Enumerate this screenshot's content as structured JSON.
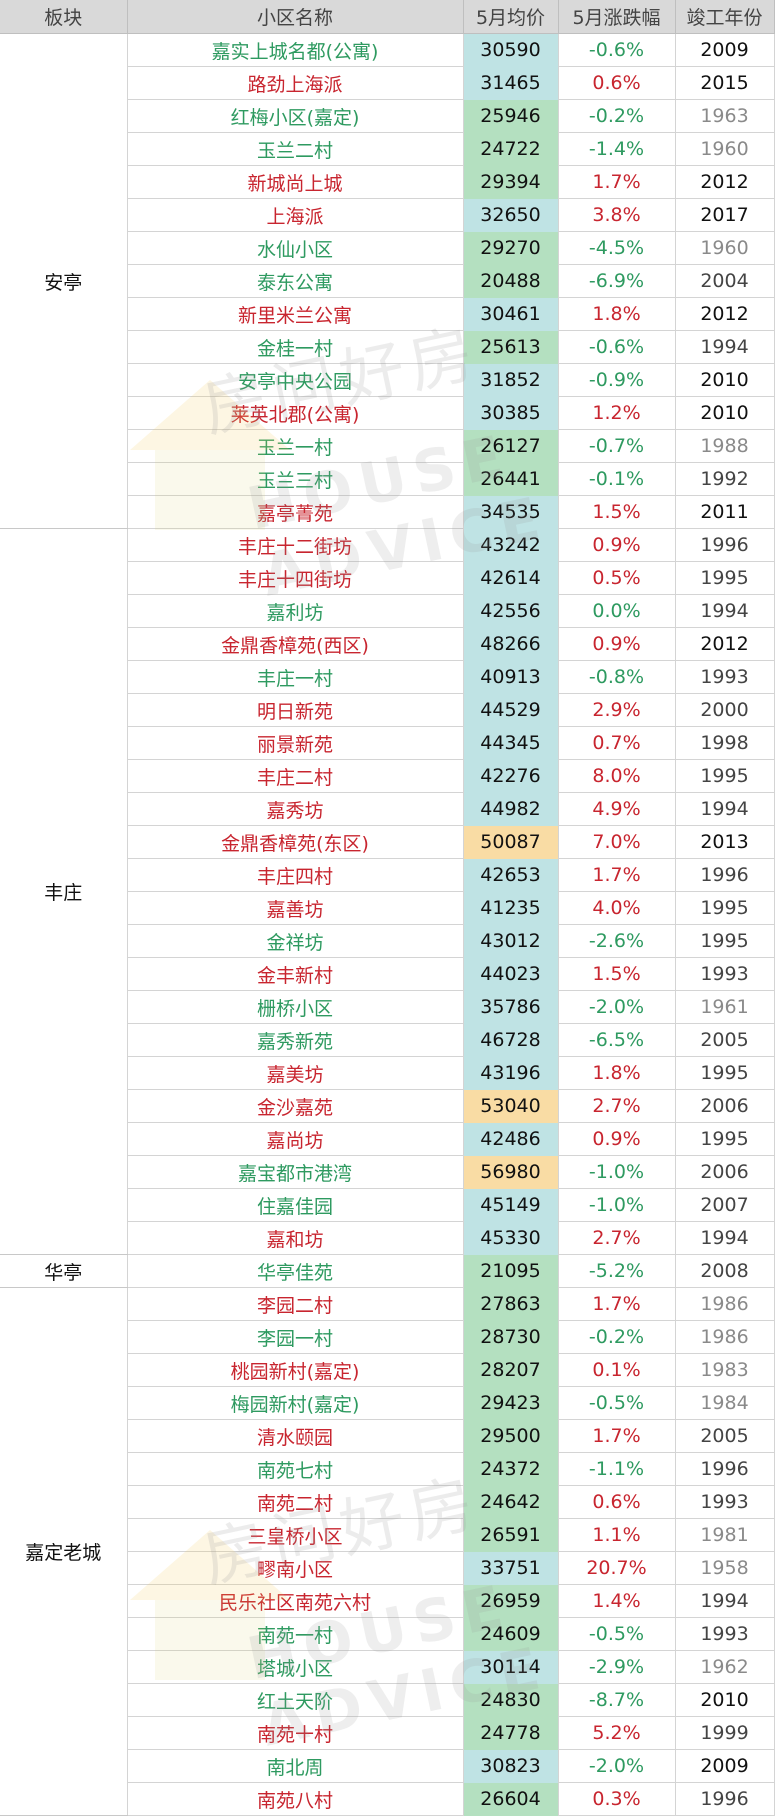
{
  "headers": [
    "板块",
    "小区名称",
    "5月均价",
    "5月涨跌幅",
    "竣工年份"
  ],
  "watermark": {
    "cn": "房问好房",
    "en": "HOUSE ADVICE"
  },
  "colors": {
    "up": "#c8252f",
    "down": "#2e9a60",
    "price_high": "#f9dca4",
    "price_mid": "#bfe3e4",
    "price_low": "#b4e0c0",
    "header_bg": "#d9d9d9"
  },
  "groups": [
    {
      "district": "安亭",
      "rows": [
        {
          "name": "嘉实上城名都(公寓)",
          "price": "30590",
          "change": "-0.6%",
          "year": "2009"
        },
        {
          "name": "路劲上海派",
          "price": "31465",
          "change": "0.6%",
          "year": "2015"
        },
        {
          "name": "红梅小区(嘉定)",
          "price": "25946",
          "change": "-0.2%",
          "year": "1963"
        },
        {
          "name": "玉兰二村",
          "price": "24722",
          "change": "-1.4%",
          "year": "1960"
        },
        {
          "name": "新城尚上城",
          "price": "29394",
          "change": "1.7%",
          "year": "2012"
        },
        {
          "name": "上海派",
          "price": "32650",
          "change": "3.8%",
          "year": "2017"
        },
        {
          "name": "水仙小区",
          "price": "29270",
          "change": "-4.5%",
          "year": "1960"
        },
        {
          "name": "泰东公寓",
          "price": "20488",
          "change": "-6.9%",
          "year": "2004"
        },
        {
          "name": "新里米兰公寓",
          "price": "30461",
          "change": "1.8%",
          "year": "2012"
        },
        {
          "name": "金桂一村",
          "price": "25613",
          "change": "-0.6%",
          "year": "1994"
        },
        {
          "name": "安亭中央公园",
          "price": "31852",
          "change": "-0.9%",
          "year": "2010"
        },
        {
          "name": "莱英北郡(公寓)",
          "price": "30385",
          "change": "1.2%",
          "year": "2010"
        },
        {
          "name": "玉兰一村",
          "price": "26127",
          "change": "-0.7%",
          "year": "1988"
        },
        {
          "name": "玉兰三村",
          "price": "26441",
          "change": "-0.1%",
          "year": "1992"
        },
        {
          "name": "嘉亭菁苑",
          "price": "34535",
          "change": "1.5%",
          "year": "2011"
        }
      ]
    },
    {
      "district": "丰庄",
      "rows": [
        {
          "name": "丰庄十二街坊",
          "price": "43242",
          "change": "0.9%",
          "year": "1996"
        },
        {
          "name": "丰庄十四街坊",
          "price": "42614",
          "change": "0.5%",
          "year": "1995"
        },
        {
          "name": "嘉利坊",
          "price": "42556",
          "change": "0.0%",
          "year": "1994"
        },
        {
          "name": "金鼎香樟苑(西区)",
          "price": "48266",
          "change": "0.9%",
          "year": "2012"
        },
        {
          "name": "丰庄一村",
          "price": "40913",
          "change": "-0.8%",
          "year": "1993"
        },
        {
          "name": "明日新苑",
          "price": "44529",
          "change": "2.9%",
          "year": "2000"
        },
        {
          "name": "丽景新苑",
          "price": "44345",
          "change": "0.7%",
          "year": "1998"
        },
        {
          "name": "丰庄二村",
          "price": "42276",
          "change": "8.0%",
          "year": "1995"
        },
        {
          "name": "嘉秀坊",
          "price": "44982",
          "change": "4.9%",
          "year": "1994"
        },
        {
          "name": "金鼎香樟苑(东区)",
          "price": "50087",
          "change": "7.0%",
          "year": "2013"
        },
        {
          "name": "丰庄四村",
          "price": "42653",
          "change": "1.7%",
          "year": "1996"
        },
        {
          "name": "嘉善坊",
          "price": "41235",
          "change": "4.0%",
          "year": "1995"
        },
        {
          "name": "金祥坊",
          "price": "43012",
          "change": "-2.6%",
          "year": "1995"
        },
        {
          "name": "金丰新村",
          "price": "44023",
          "change": "1.5%",
          "year": "1993"
        },
        {
          "name": "栅桥小区",
          "price": "35786",
          "change": "-2.0%",
          "year": "1961"
        },
        {
          "name": "嘉秀新苑",
          "price": "46728",
          "change": "-6.5%",
          "year": "2005"
        },
        {
          "name": "嘉美坊",
          "price": "43196",
          "change": "1.8%",
          "year": "1995"
        },
        {
          "name": "金沙嘉苑",
          "price": "53040",
          "change": "2.7%",
          "year": "2006"
        },
        {
          "name": "嘉尚坊",
          "price": "42486",
          "change": "0.9%",
          "year": "1995"
        },
        {
          "name": "嘉宝都市港湾",
          "price": "56980",
          "change": "-1.0%",
          "year": "2006"
        },
        {
          "name": "住嘉佳园",
          "price": "45149",
          "change": "-1.0%",
          "year": "2007"
        },
        {
          "name": "嘉和坊",
          "price": "45330",
          "change": "2.7%",
          "year": "1994"
        }
      ]
    },
    {
      "district": "华亭",
      "rows": [
        {
          "name": "华亭佳苑",
          "price": "21095",
          "change": "-5.2%",
          "year": "2008"
        }
      ]
    },
    {
      "district": "嘉定老城",
      "rows": [
        {
          "name": "李园二村",
          "price": "27863",
          "change": "1.7%",
          "year": "1986"
        },
        {
          "name": "李园一村",
          "price": "28730",
          "change": "-0.2%",
          "year": "1986"
        },
        {
          "name": "桃园新村(嘉定)",
          "price": "28207",
          "change": "0.1%",
          "year": "1983"
        },
        {
          "name": "梅园新村(嘉定)",
          "price": "29423",
          "change": "-0.5%",
          "year": "1984"
        },
        {
          "name": "清水颐园",
          "price": "29500",
          "change": "1.7%",
          "year": "2005"
        },
        {
          "name": "南苑七村",
          "price": "24372",
          "change": "-1.1%",
          "year": "1996"
        },
        {
          "name": "南苑二村",
          "price": "24642",
          "change": "0.6%",
          "year": "1993"
        },
        {
          "name": "三皇桥小区",
          "price": "26591",
          "change": "1.1%",
          "year": "1981"
        },
        {
          "name": "疁南小区",
          "price": "33751",
          "change": "20.7%",
          "year": "1958"
        },
        {
          "name": "民乐社区南苑六村",
          "price": "26959",
          "change": "1.4%",
          "year": "1994"
        },
        {
          "name": "南苑一村",
          "price": "24609",
          "change": "-0.5%",
          "year": "1993"
        },
        {
          "name": "塔城小区",
          "price": "30114",
          "change": "-2.9%",
          "year": "1962"
        },
        {
          "name": "红土天阶",
          "price": "24830",
          "change": "-8.7%",
          "year": "2010"
        },
        {
          "name": "南苑十村",
          "price": "24778",
          "change": "5.2%",
          "year": "1999"
        },
        {
          "name": "南北周",
          "price": "30823",
          "change": "-2.0%",
          "year": "2009"
        },
        {
          "name": "南苑八村",
          "price": "26604",
          "change": "0.3%",
          "year": "1996"
        }
      ]
    }
  ]
}
